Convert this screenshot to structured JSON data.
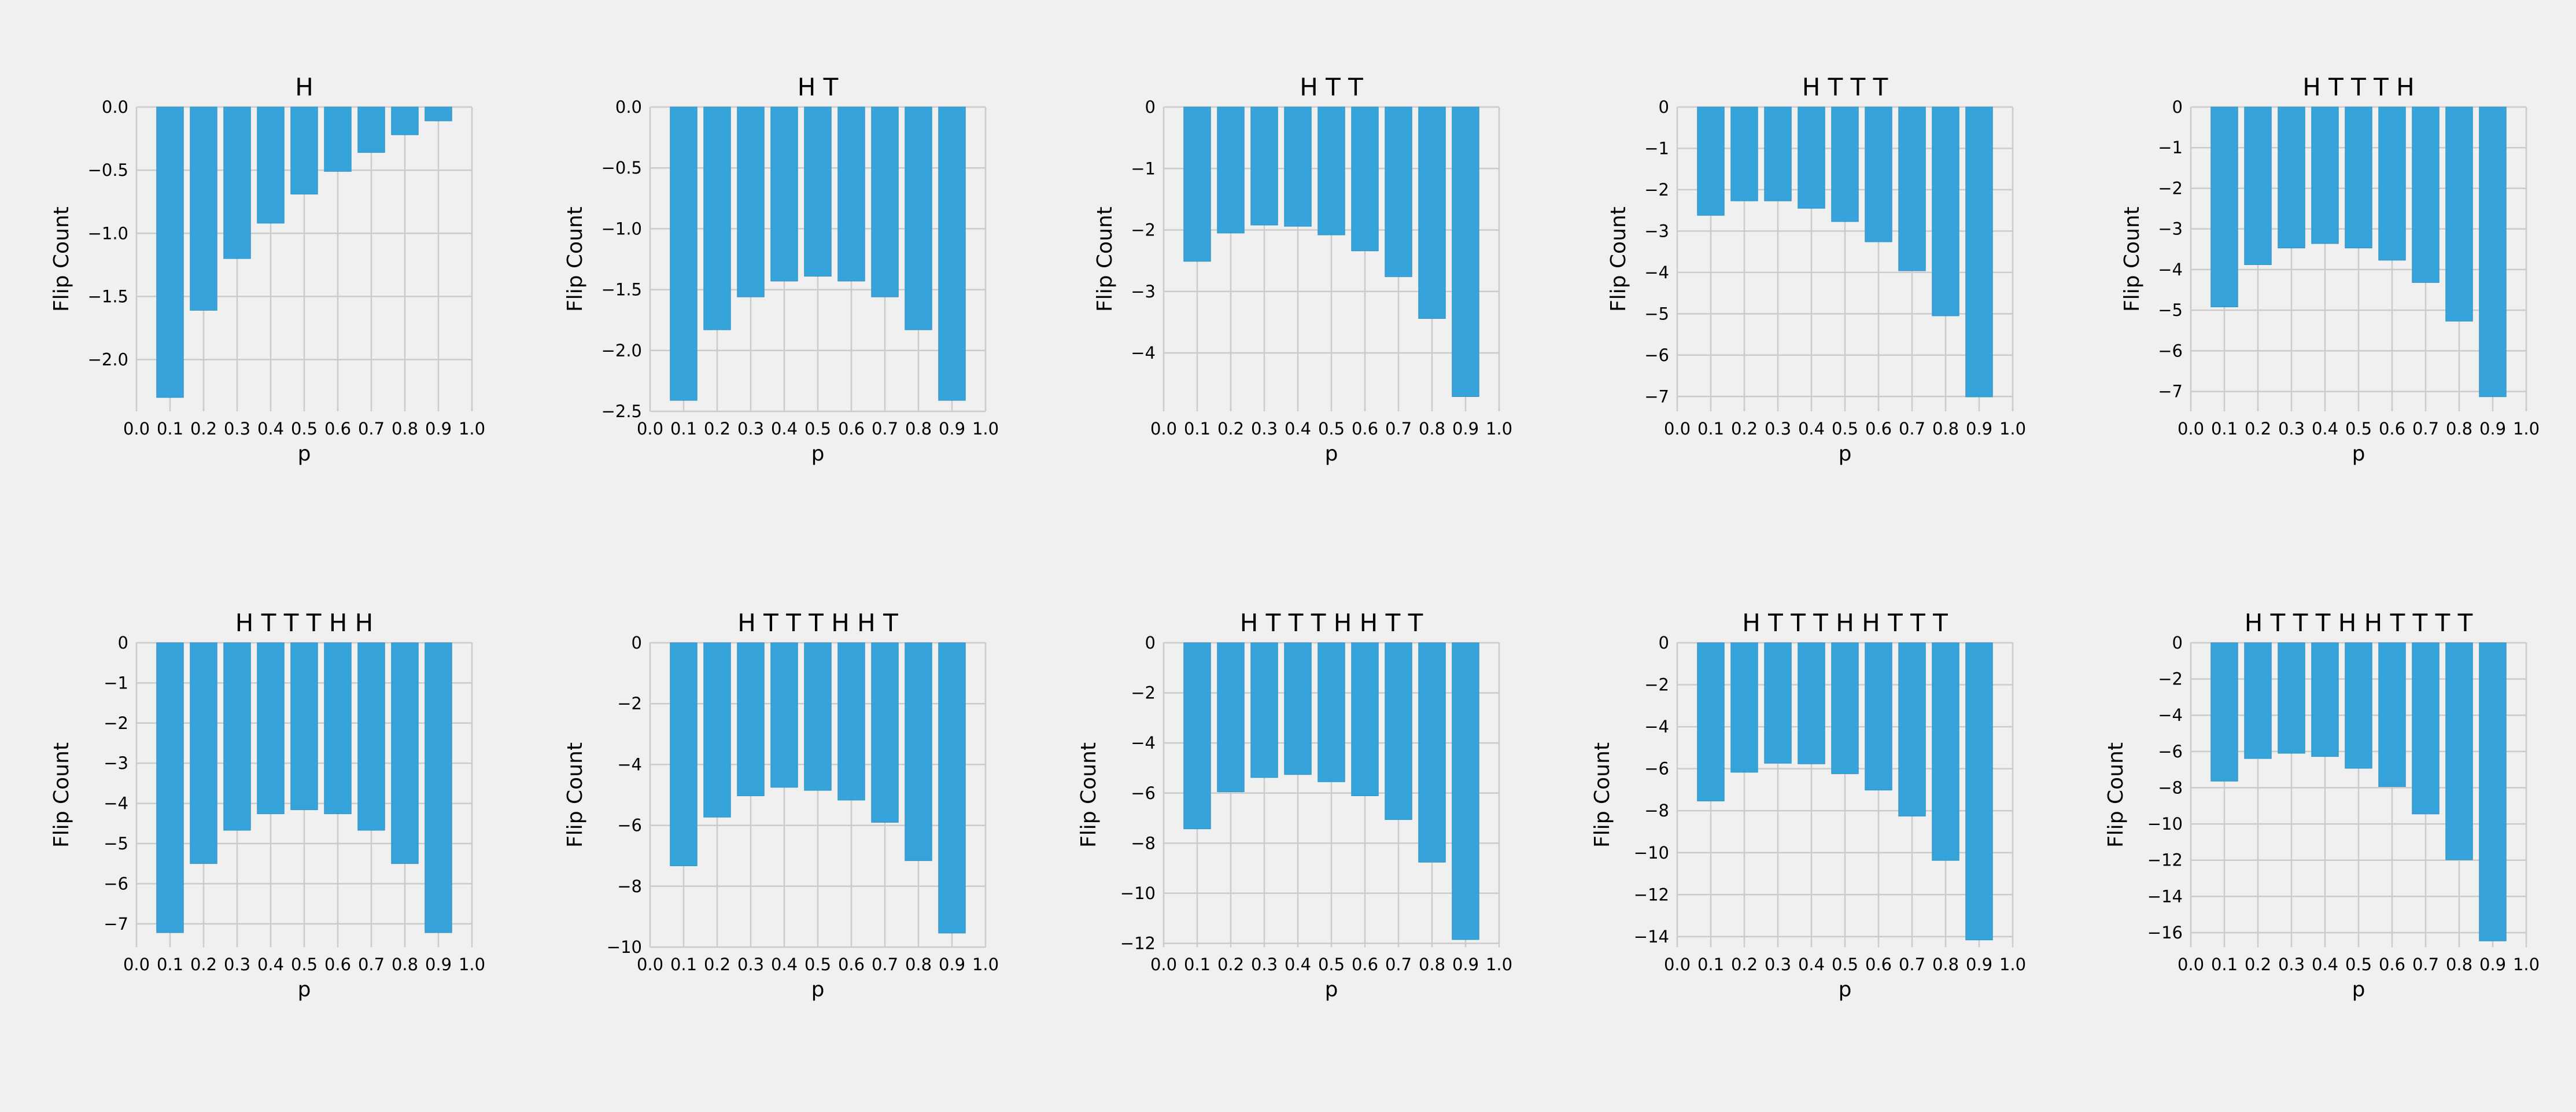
{
  "chart_data": [
    {
      "type": "bar",
      "title": "H",
      "xlabel": "p",
      "ylabel": "Flip Count",
      "categories": [
        0.1,
        0.2,
        0.3,
        0.4,
        0.5,
        0.6,
        0.7,
        0.8,
        0.9
      ],
      "values": [
        -2.3,
        -1.61,
        -1.2,
        -0.92,
        -0.69,
        -0.51,
        -0.36,
        -0.22,
        -0.11
      ],
      "xticks": [
        "0.0",
        "0.1",
        "0.2",
        "0.3",
        "0.4",
        "0.5",
        "0.6",
        "0.7",
        "0.8",
        "0.9",
        "1.0"
      ],
      "yticks": [
        "0.0",
        "−0.5",
        "−1.0",
        "−1.5",
        "−2.0"
      ],
      "ytick_values": [
        0,
        -0.5,
        -1.0,
        -1.5,
        -2.0
      ],
      "ylim": [
        -2.41,
        0.0
      ],
      "grid": true
    },
    {
      "type": "bar",
      "title": "H T",
      "xlabel": "p",
      "ylabel": "Flip Count",
      "categories": [
        0.1,
        0.2,
        0.3,
        0.4,
        0.5,
        0.6,
        0.7,
        0.8,
        0.9
      ],
      "values": [
        -2.41,
        -1.83,
        -1.56,
        -1.43,
        -1.39,
        -1.43,
        -1.56,
        -1.83,
        -2.41
      ],
      "xticks": [
        "0.0",
        "0.1",
        "0.2",
        "0.3",
        "0.4",
        "0.5",
        "0.6",
        "0.7",
        "0.8",
        "0.9",
        "1.0"
      ],
      "yticks": [
        "0.0",
        "−0.5",
        "−1.0",
        "−1.5",
        "−2.0",
        "−2.5"
      ],
      "ytick_values": [
        0,
        -0.5,
        -1.0,
        -1.5,
        -2.0,
        -2.5
      ],
      "ylim": [
        -2.5,
        0.0
      ],
      "grid": true
    },
    {
      "type": "bar",
      "title": "H T T",
      "xlabel": "p",
      "ylabel": "Flip Count",
      "categories": [
        0.1,
        0.2,
        0.3,
        0.4,
        0.5,
        0.6,
        0.7,
        0.8,
        0.9
      ],
      "values": [
        -2.51,
        -2.05,
        -1.92,
        -1.94,
        -2.08,
        -2.34,
        -2.76,
        -3.44,
        -4.71
      ],
      "xticks": [
        "0.0",
        "0.1",
        "0.2",
        "0.3",
        "0.4",
        "0.5",
        "0.6",
        "0.7",
        "0.8",
        "0.9",
        "1.0"
      ],
      "yticks": [
        "0",
        "−1",
        "−2",
        "−3",
        "−4"
      ],
      "ytick_values": [
        0,
        -1,
        -2,
        -3,
        -4
      ],
      "ylim": [
        -4.95,
        0.0
      ],
      "grid": true
    },
    {
      "type": "bar",
      "title": "H T T T",
      "xlabel": "p",
      "ylabel": "Flip Count",
      "categories": [
        0.1,
        0.2,
        0.3,
        0.4,
        0.5,
        0.6,
        0.7,
        0.8,
        0.9
      ],
      "values": [
        -2.62,
        -2.27,
        -2.27,
        -2.45,
        -2.77,
        -3.26,
        -3.96,
        -5.05,
        -7.01
      ],
      "xticks": [
        "0.0",
        "0.1",
        "0.2",
        "0.3",
        "0.4",
        "0.5",
        "0.6",
        "0.7",
        "0.8",
        "0.9",
        "1.0"
      ],
      "yticks": [
        "0",
        "−1",
        "−2",
        "−3",
        "−4",
        "−5",
        "−6",
        "−7"
      ],
      "ytick_values": [
        0,
        -1,
        -2,
        -3,
        -4,
        -5,
        -6,
        -7
      ],
      "ylim": [
        -7.36,
        0.0
      ],
      "grid": true
    },
    {
      "type": "bar",
      "title": "H T T T H",
      "xlabel": "p",
      "ylabel": "Flip Count",
      "categories": [
        0.1,
        0.2,
        0.3,
        0.4,
        0.5,
        0.6,
        0.7,
        0.8,
        0.9
      ],
      "values": [
        -4.92,
        -3.88,
        -3.47,
        -3.36,
        -3.47,
        -3.77,
        -4.32,
        -5.27,
        -7.13
      ],
      "xticks": [
        "0.0",
        "0.1",
        "0.2",
        "0.3",
        "0.4",
        "0.5",
        "0.6",
        "0.7",
        "0.8",
        "0.9",
        "1.0"
      ],
      "yticks": [
        "0",
        "−1",
        "−2",
        "−3",
        "−4",
        "−5",
        "−6",
        "−7"
      ],
      "ytick_values": [
        0,
        -1,
        -2,
        -3,
        -4,
        -5,
        -6,
        -7
      ],
      "ylim": [
        -7.49,
        0.0
      ],
      "grid": true
    },
    {
      "type": "bar",
      "title": "H T T T H H",
      "xlabel": "p",
      "ylabel": "Flip Count",
      "categories": [
        0.1,
        0.2,
        0.3,
        0.4,
        0.5,
        0.6,
        0.7,
        0.8,
        0.9
      ],
      "values": [
        -7.22,
        -5.5,
        -4.67,
        -4.26,
        -4.16,
        -4.26,
        -4.67,
        -5.5,
        -7.22
      ],
      "xticks": [
        "0.0",
        "0.1",
        "0.2",
        "0.3",
        "0.4",
        "0.5",
        "0.6",
        "0.7",
        "0.8",
        "0.9",
        "1.0"
      ],
      "yticks": [
        "0",
        "−1",
        "−2",
        "−3",
        "−4",
        "−5",
        "−6",
        "−7"
      ],
      "ytick_values": [
        0,
        -1,
        -2,
        -3,
        -4,
        -5,
        -6,
        -7
      ],
      "ylim": [
        -7.58,
        0.0
      ],
      "grid": true
    },
    {
      "type": "bar",
      "title": "H T T T H H T",
      "xlabel": "p",
      "ylabel": "Flip Count",
      "categories": [
        0.1,
        0.2,
        0.3,
        0.4,
        0.5,
        0.6,
        0.7,
        0.8,
        0.9
      ],
      "values": [
        -7.33,
        -5.73,
        -5.03,
        -4.75,
        -4.85,
        -5.17,
        -5.9,
        -7.16,
        -9.54
      ],
      "xticks": [
        "0.0",
        "0.1",
        "0.2",
        "0.3",
        "0.4",
        "0.5",
        "0.6",
        "0.7",
        "0.8",
        "0.9",
        "1.0"
      ],
      "yticks": [
        "0",
        "−2",
        "−4",
        "−6",
        "−8",
        "−10"
      ],
      "ytick_values": [
        0,
        -2,
        -4,
        -6,
        -8,
        -10
      ],
      "ylim": [
        -10.0,
        0.0
      ],
      "grid": true
    },
    {
      "type": "bar",
      "title": "H T T T H H T T",
      "xlabel": "p",
      "ylabel": "Flip Count",
      "categories": [
        0.1,
        0.2,
        0.3,
        0.4,
        0.5,
        0.6,
        0.7,
        0.8,
        0.9
      ],
      "values": [
        -7.43,
        -5.95,
        -5.38,
        -5.26,
        -5.55,
        -6.11,
        -7.06,
        -8.76,
        -11.85
      ],
      "xticks": [
        "0.0",
        "0.1",
        "0.2",
        "0.3",
        "0.4",
        "0.5",
        "0.6",
        "0.7",
        "0.8",
        "0.9",
        "1.0"
      ],
      "yticks": [
        "0",
        "−2",
        "−4",
        "−6",
        "−8",
        "−10",
        "−12"
      ],
      "ytick_values": [
        0,
        -2,
        -4,
        -6,
        -8,
        -10,
        -12
      ],
      "ylim": [
        -12.15,
        0.0
      ],
      "grid": true
    },
    {
      "type": "bar",
      "title": "H T T T H H T T T",
      "xlabel": "p",
      "ylabel": "Flip Count",
      "categories": [
        0.1,
        0.2,
        0.3,
        0.4,
        0.5,
        0.6,
        0.7,
        0.8,
        0.9
      ],
      "values": [
        -7.54,
        -6.17,
        -5.74,
        -5.77,
        -6.24,
        -7.02,
        -8.26,
        -10.37,
        -14.16
      ],
      "xticks": [
        "0.0",
        "0.1",
        "0.2",
        "0.3",
        "0.4",
        "0.5",
        "0.6",
        "0.7",
        "0.8",
        "0.9",
        "1.0"
      ],
      "yticks": [
        "0",
        "−2",
        "−4",
        "−6",
        "−8",
        "−10",
        "−12",
        "−14"
      ],
      "ytick_values": [
        0,
        -2,
        -4,
        -6,
        -8,
        -10,
        -12,
        -14
      ],
      "ylim": [
        -14.5,
        0.0
      ],
      "grid": true
    },
    {
      "type": "bar",
      "title": "H T T T H H T T T T",
      "xlabel": "p",
      "ylabel": "Flip Count",
      "categories": [
        0.1,
        0.2,
        0.3,
        0.4,
        0.5,
        0.6,
        0.7,
        0.8,
        0.9
      ],
      "values": [
        -7.64,
        -6.39,
        -6.1,
        -6.28,
        -6.93,
        -7.94,
        -9.45,
        -11.98,
        -16.46
      ],
      "xticks": [
        "0.0",
        "0.1",
        "0.2",
        "0.3",
        "0.4",
        "0.5",
        "0.6",
        "0.7",
        "0.8",
        "0.9",
        "1.0"
      ],
      "yticks": [
        "0",
        "−2",
        "−4",
        "−6",
        "−8",
        "−10",
        "−12",
        "−14",
        "−16"
      ],
      "ytick_values": [
        0,
        -2,
        -4,
        -6,
        -8,
        -10,
        -12,
        -14,
        -16
      ],
      "ylim": [
        -16.8,
        0.0
      ],
      "grid": true
    }
  ],
  "colors": {
    "bar": "#30a2da",
    "background": "#f0f0f0",
    "grid": "#cbcbcb"
  }
}
